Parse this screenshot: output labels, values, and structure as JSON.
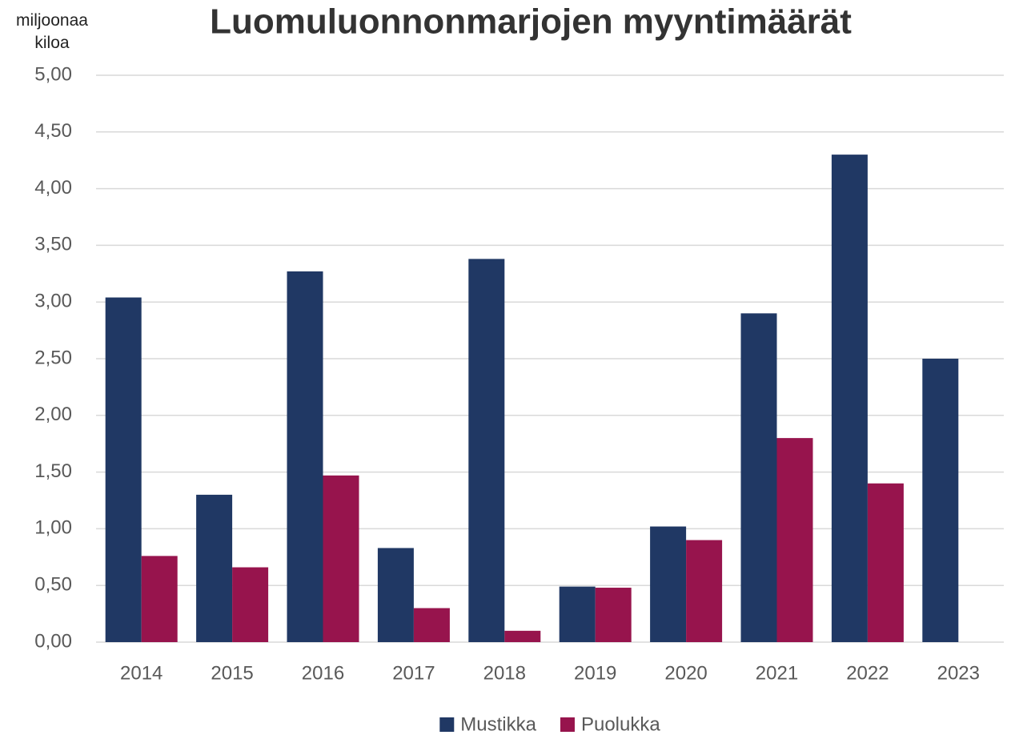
{
  "chart_data": {
    "type": "bar",
    "title": "Luomuluonnonmarjojen myyntimäärät",
    "y_label": "miljoonaa kiloa",
    "categories": [
      "2014",
      "2015",
      "2016",
      "2017",
      "2018",
      "2019",
      "2020",
      "2021",
      "2022",
      "2023"
    ],
    "series": [
      {
        "name": "Mustikka",
        "color": "#203864",
        "values": [
          3.04,
          1.3,
          3.27,
          0.83,
          3.38,
          0.49,
          1.02,
          2.9,
          4.3,
          2.5
        ]
      },
      {
        "name": "Puolukka",
        "color": "#97144d",
        "values": [
          0.76,
          0.66,
          1.47,
          0.3,
          0.1,
          0.48,
          0.9,
          1.8,
          1.4,
          null
        ]
      }
    ],
    "ylim": [
      0,
      5
    ],
    "yticks": [
      {
        "value": 0,
        "label": "0,00"
      },
      {
        "value": 0.5,
        "label": "0,50"
      },
      {
        "value": 1,
        "label": "1,00"
      },
      {
        "value": 1.5,
        "label": "1,50"
      },
      {
        "value": 2,
        "label": "2,00"
      },
      {
        "value": 2.5,
        "label": "2,50"
      },
      {
        "value": 3,
        "label": "3,00"
      },
      {
        "value": 3.5,
        "label": "3,50"
      },
      {
        "value": 4,
        "label": "4,00"
      },
      {
        "value": 4.5,
        "label": "4,50"
      },
      {
        "value": 5,
        "label": "5,00"
      }
    ],
    "grid": true,
    "legend": "bottom"
  }
}
